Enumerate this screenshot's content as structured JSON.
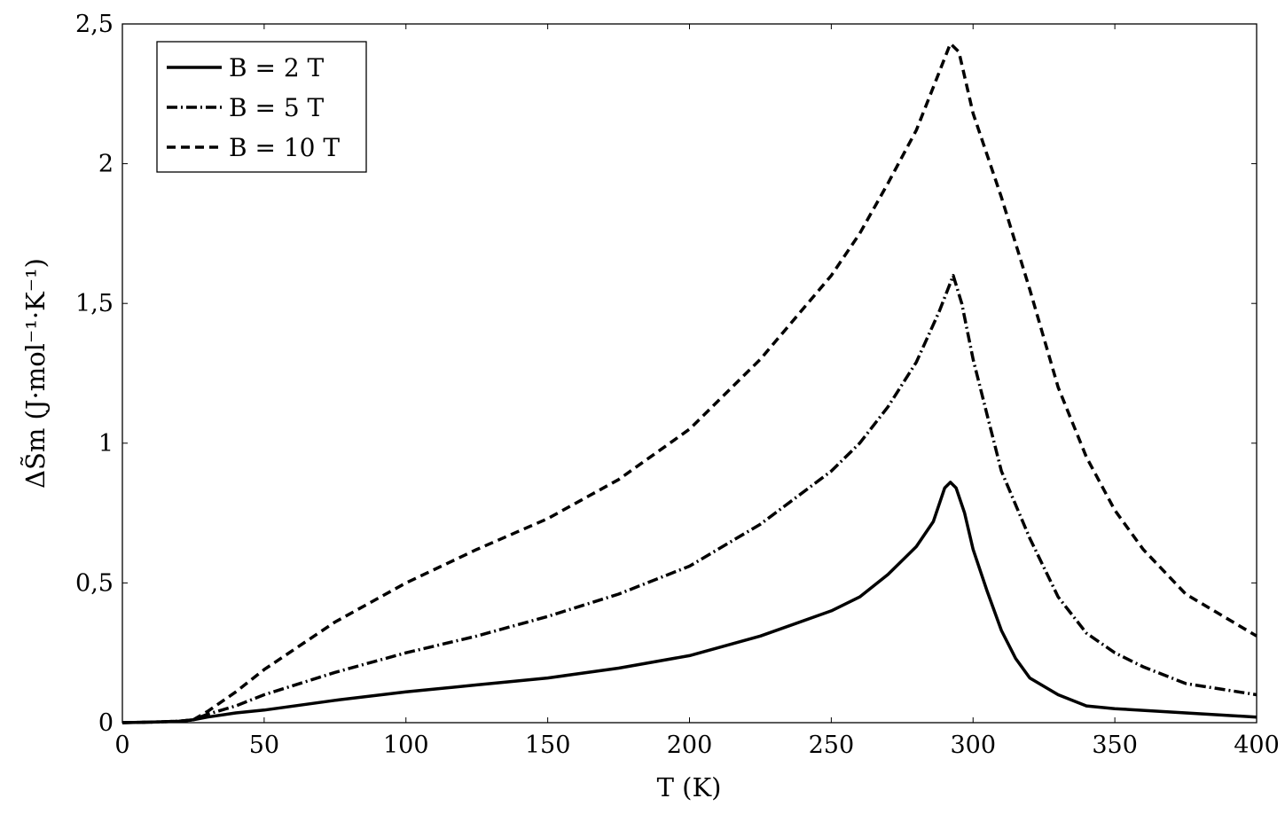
{
  "chart_data": {
    "type": "line",
    "xlabel": "T (K)",
    "ylabel": "ΔS̃m (J·mol⁻¹·K⁻¹)",
    "xlim": [
      0,
      400
    ],
    "ylim": [
      0,
      2.5
    ],
    "x_ticks": [
      "0",
      "50",
      "100",
      "150",
      "200",
      "250",
      "300",
      "350",
      "400"
    ],
    "y_ticks": [
      "0",
      "0,5",
      "1",
      "1,5",
      "2",
      "2,5"
    ],
    "grid": false,
    "legend_position": "top-left",
    "series": [
      {
        "name": "B = 2 T",
        "style": "solid",
        "points": [
          [
            0,
            0
          ],
          [
            10,
            0.002
          ],
          [
            20,
            0.005
          ],
          [
            25,
            0.01
          ],
          [
            30,
            0.02
          ],
          [
            40,
            0.035
          ],
          [
            50,
            0.045
          ],
          [
            75,
            0.08
          ],
          [
            100,
            0.11
          ],
          [
            125,
            0.135
          ],
          [
            150,
            0.16
          ],
          [
            175,
            0.195
          ],
          [
            200,
            0.24
          ],
          [
            225,
            0.31
          ],
          [
            250,
            0.4
          ],
          [
            260,
            0.45
          ],
          [
            270,
            0.53
          ],
          [
            280,
            0.63
          ],
          [
            286,
            0.72
          ],
          [
            290,
            0.84
          ],
          [
            292,
            0.86
          ],
          [
            294,
            0.84
          ],
          [
            297,
            0.75
          ],
          [
            300,
            0.62
          ],
          [
            305,
            0.47
          ],
          [
            310,
            0.33
          ],
          [
            315,
            0.23
          ],
          [
            320,
            0.16
          ],
          [
            330,
            0.1
          ],
          [
            340,
            0.06
          ],
          [
            350,
            0.05
          ],
          [
            375,
            0.035
          ],
          [
            400,
            0.02
          ]
        ]
      },
      {
        "name": "B = 5 T",
        "style": "dashdot",
        "points": [
          [
            0,
            0
          ],
          [
            10,
            0.002
          ],
          [
            20,
            0.005
          ],
          [
            25,
            0.01
          ],
          [
            30,
            0.03
          ],
          [
            40,
            0.06
          ],
          [
            50,
            0.1
          ],
          [
            75,
            0.18
          ],
          [
            100,
            0.25
          ],
          [
            125,
            0.31
          ],
          [
            150,
            0.38
          ],
          [
            175,
            0.46
          ],
          [
            200,
            0.56
          ],
          [
            225,
            0.71
          ],
          [
            250,
            0.9
          ],
          [
            260,
            1.0
          ],
          [
            270,
            1.13
          ],
          [
            280,
            1.29
          ],
          [
            288,
            1.47
          ],
          [
            293,
            1.6
          ],
          [
            296,
            1.5
          ],
          [
            300,
            1.3
          ],
          [
            305,
            1.1
          ],
          [
            310,
            0.9
          ],
          [
            320,
            0.66
          ],
          [
            330,
            0.45
          ],
          [
            340,
            0.32
          ],
          [
            350,
            0.25
          ],
          [
            360,
            0.2
          ],
          [
            375,
            0.14
          ],
          [
            400,
            0.1
          ]
        ]
      },
      {
        "name": "B = 10 T",
        "style": "dashed",
        "points": [
          [
            0,
            0
          ],
          [
            10,
            0.002
          ],
          [
            20,
            0.005
          ],
          [
            25,
            0.01
          ],
          [
            30,
            0.04
          ],
          [
            40,
            0.11
          ],
          [
            50,
            0.19
          ],
          [
            75,
            0.36
          ],
          [
            100,
            0.5
          ],
          [
            125,
            0.62
          ],
          [
            150,
            0.73
          ],
          [
            175,
            0.87
          ],
          [
            200,
            1.05
          ],
          [
            225,
            1.3
          ],
          [
            250,
            1.6
          ],
          [
            260,
            1.75
          ],
          [
            270,
            1.93
          ],
          [
            280,
            2.12
          ],
          [
            287,
            2.3
          ],
          [
            292,
            2.43
          ],
          [
            295,
            2.4
          ],
          [
            300,
            2.18
          ],
          [
            310,
            1.88
          ],
          [
            320,
            1.55
          ],
          [
            330,
            1.2
          ],
          [
            340,
            0.95
          ],
          [
            350,
            0.76
          ],
          [
            360,
            0.62
          ],
          [
            375,
            0.46
          ],
          [
            400,
            0.31
          ]
        ]
      }
    ]
  }
}
